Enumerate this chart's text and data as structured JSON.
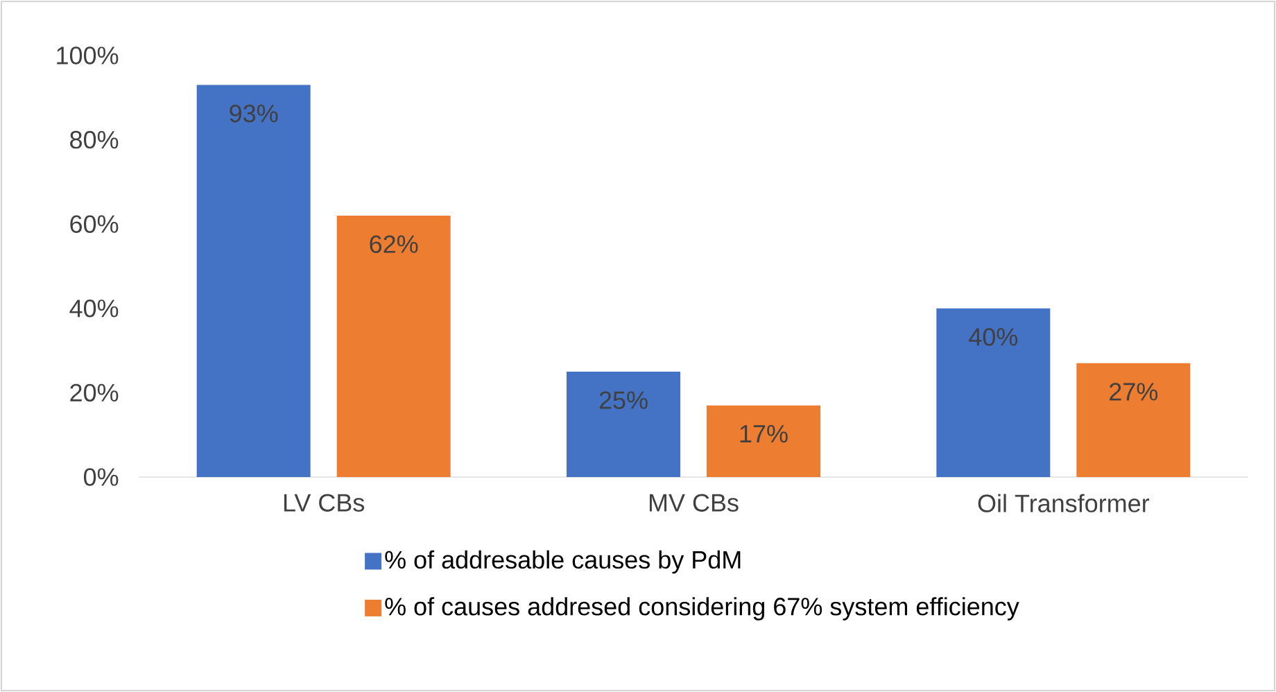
{
  "chart_data": {
    "type": "bar",
    "categories": [
      "LV CBs",
      "MV CBs",
      "Oil Transformer"
    ],
    "series": [
      {
        "name": "% of addresable causes by PdM",
        "color": "#4472c4",
        "values": [
          93,
          25,
          40
        ],
        "value_labels": [
          "93%",
          "25%",
          "40%"
        ]
      },
      {
        "name": "% of causes addresed considering 67% system efficiency",
        "color": "#ed7d31",
        "values": [
          62,
          17,
          27
        ],
        "value_labels": [
          "62%",
          "17%",
          "27%"
        ]
      }
    ],
    "ylim": [
      0,
      100
    ],
    "yticks": [
      {
        "value": 0,
        "label": "0%"
      },
      {
        "value": 20,
        "label": "20%"
      },
      {
        "value": 40,
        "label": "40%"
      },
      {
        "value": 60,
        "label": "60%"
      },
      {
        "value": 80,
        "label": "80%"
      },
      {
        "value": 100,
        "label": "100%"
      }
    ],
    "legend": "bottom"
  }
}
